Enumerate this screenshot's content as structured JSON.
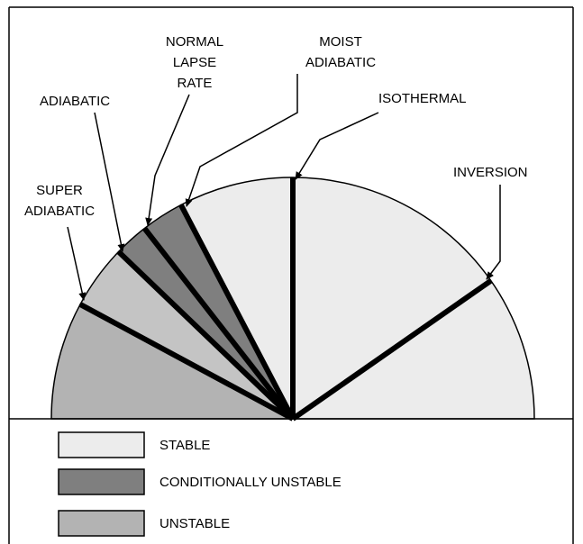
{
  "labels": {
    "super_adiabatic": [
      "SUPER",
      "ADIABATIC"
    ],
    "adiabatic": [
      "ADIABATIC"
    ],
    "normal_lapse_rate": [
      "NORMAL",
      "LAPSE",
      "RATE"
    ],
    "moist_adiabatic": [
      "MOIST",
      "ADIABATIC"
    ],
    "isothermal": [
      "ISOTHERMAL"
    ],
    "inversion": [
      "INVERSION"
    ]
  },
  "legend": [
    "STABLE",
    "CONDITIONALLY UNSTABLE",
    "UNSTABLE"
  ]
}
